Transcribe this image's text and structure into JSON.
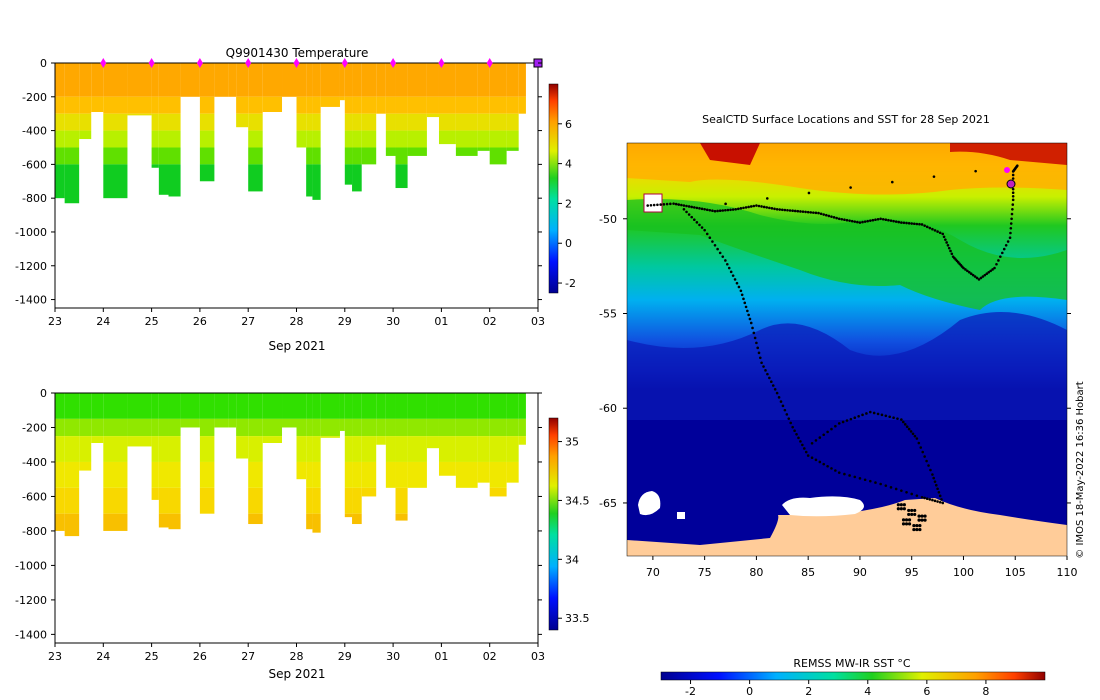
{
  "chart_data": [
    {
      "type": "heatmap",
      "title": "Q9901430  Temperature",
      "xlabel": "Sep 2021",
      "ylabel": "",
      "x_tick_labels": [
        "23",
        "24",
        "25",
        "26",
        "27",
        "28",
        "29",
        "30",
        "01",
        "02",
        "03"
      ],
      "y_ticks": [
        0,
        -200,
        -400,
        -600,
        -800,
        -1000,
        -1200,
        -1400
      ],
      "ylim": [
        -1450,
        0
      ],
      "colorbar_ticks": [
        6,
        4,
        2,
        0,
        -2
      ],
      "colorbar_range": [
        -2.5,
        8
      ],
      "profile_markers_day": [
        "24",
        "25",
        "26",
        "27",
        "28",
        "29",
        "30",
        "01",
        "02"
      ],
      "profiles": [
        {
          "day": 23.0,
          "depth": 800
        },
        {
          "day": 23.2,
          "depth": 830
        },
        {
          "day": 23.5,
          "depth": 450
        },
        {
          "day": 23.75,
          "depth": 290
        },
        {
          "day": 24.0,
          "depth": 800
        },
        {
          "day": 24.5,
          "depth": 310
        },
        {
          "day": 25.0,
          "depth": 620
        },
        {
          "day": 25.15,
          "depth": 780
        },
        {
          "day": 25.35,
          "depth": 790
        },
        {
          "day": 25.6,
          "depth": 200
        },
        {
          "day": 26.0,
          "depth": 700
        },
        {
          "day": 26.3,
          "depth": 200
        },
        {
          "day": 26.6,
          "depth": 200
        },
        {
          "day": 26.75,
          "depth": 380
        },
        {
          "day": 27.0,
          "depth": 760
        },
        {
          "day": 27.3,
          "depth": 290
        },
        {
          "day": 27.7,
          "depth": 200
        },
        {
          "day": 28.0,
          "depth": 500
        },
        {
          "day": 28.2,
          "depth": 790
        },
        {
          "day": 28.33,
          "depth": 810
        },
        {
          "day": 28.5,
          "depth": 260
        },
        {
          "day": 28.9,
          "depth": 220
        },
        {
          "day": 29.0,
          "depth": 720
        },
        {
          "day": 29.15,
          "depth": 760
        },
        {
          "day": 29.35,
          "depth": 600
        },
        {
          "day": 29.65,
          "depth": 300
        },
        {
          "day": 29.85,
          "depth": 550
        },
        {
          "day": 30.05,
          "depth": 740
        },
        {
          "day": 30.3,
          "depth": 550
        },
        {
          "day": 30.7,
          "depth": 320
        },
        {
          "day": 30.95,
          "depth": 480
        },
        {
          "day": 31.3,
          "depth": 550
        },
        {
          "day": 31.75,
          "depth": 520
        },
        {
          "day": 32.0,
          "depth": 600
        },
        {
          "day": 32.35,
          "depth": 520
        },
        {
          "day": 32.6,
          "depth": 300
        }
      ]
    },
    {
      "type": "heatmap",
      "title": "",
      "xlabel": "Sep 2021",
      "ylabel": "",
      "x_tick_labels": [
        "23",
        "24",
        "25",
        "26",
        "27",
        "28",
        "29",
        "30",
        "01",
        "02",
        "03"
      ],
      "y_ticks": [
        0,
        -200,
        -400,
        -600,
        -800,
        -1000,
        -1200,
        -1400
      ],
      "ylim": [
        -1450,
        0
      ],
      "colorbar_ticks": [
        35,
        34.5,
        34,
        33.5
      ],
      "colorbar_range": [
        33.4,
        35.2
      ]
    },
    {
      "type": "heatmap",
      "title": "SealCTD Surface Locations and SST for 28 Sep 2021",
      "xlabel": "",
      "ylabel": "",
      "x_tick_labels": [
        "70",
        "75",
        "80",
        "85",
        "90",
        "95",
        "100",
        "105",
        "110"
      ],
      "y_tick_labels": [
        "-50",
        "-55",
        "-60",
        "-65"
      ],
      "xlim": [
        67.5,
        110
      ],
      "ylim": [
        -67.8,
        -46
      ],
      "colorbar_label": "REMSS MW-IR SST °C",
      "colorbar_ticks": [
        "-2",
        "0",
        "2",
        "4",
        "6",
        "8"
      ],
      "colorbar_range": [
        -3,
        10
      ],
      "credit": "© IMOS 18-May-2022 16:36 Hobart",
      "track": [
        [
          69.5,
          -49.3
        ],
        [
          72,
          -49.2
        ],
        [
          74,
          -49.4
        ],
        [
          76,
          -49.6
        ],
        [
          78,
          -49.5
        ],
        [
          80,
          -49.3
        ],
        [
          82,
          -49.5
        ],
        [
          84,
          -49.6
        ],
        [
          86,
          -49.7
        ],
        [
          88,
          -50.0
        ],
        [
          90,
          -50.2
        ],
        [
          92,
          -50.0
        ],
        [
          94,
          -50.2
        ],
        [
          96,
          -50.3
        ],
        [
          98,
          -50.8
        ],
        [
          99,
          -52
        ],
        [
          100,
          -52.6
        ],
        [
          101.5,
          -53.2
        ],
        [
          103,
          -52.6
        ],
        [
          104.5,
          -51
        ],
        [
          104.8,
          -49
        ],
        [
          104.8,
          -47.5
        ],
        [
          105.2,
          -47.2
        ],
        [
          73,
          -49.5
        ],
        [
          75,
          -50.6
        ],
        [
          77,
          -52.2
        ],
        [
          78.5,
          -53.8
        ],
        [
          79.5,
          -55.5
        ],
        [
          80.5,
          -57.6
        ],
        [
          82,
          -59.2
        ],
        [
          83.5,
          -61
        ],
        [
          85,
          -62.5
        ],
        [
          88,
          -63.4
        ],
        [
          92,
          -64.0
        ],
        [
          96,
          -64.7
        ],
        [
          98,
          -65.0
        ],
        [
          97,
          -63.5
        ],
        [
          95.5,
          -61.6
        ],
        [
          94,
          -60.6
        ],
        [
          91,
          -60.2
        ],
        [
          88,
          -60.8
        ],
        [
          85,
          -62.0
        ]
      ],
      "cluster": [
        [
          95,
          -65.5
        ],
        [
          94.5,
          -66
        ],
        [
          95.5,
          -66.3
        ],
        [
          94,
          -65.2
        ],
        [
          96,
          -65.8
        ]
      ]
    }
  ]
}
